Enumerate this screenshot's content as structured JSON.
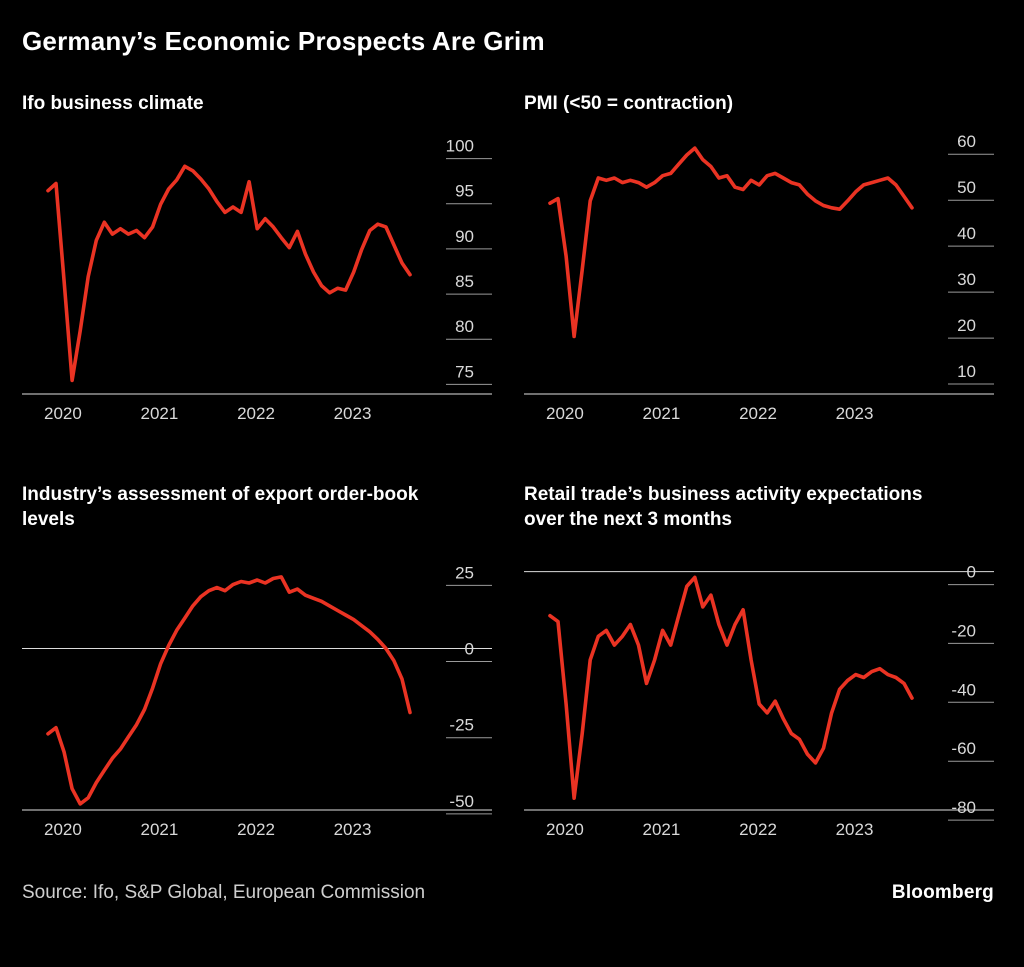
{
  "title": "Germany’s Economic Prospects Are Grim",
  "footer": {
    "source": "Source: Ifo, S&P Global, European Commission",
    "brand": "Bloomberg"
  },
  "colors": {
    "background": "#000000",
    "line": "#ea3323",
    "axis_text": "#d9d9d9",
    "axis_line": "#b3b3b3",
    "tick_line": "#9a9a9a",
    "zero_line": "#dcdcdc",
    "title_text": "#ffffff"
  },
  "chart_data": [
    {
      "type": "line",
      "title": "Ifo business climate",
      "x_tick_labels": [
        "2020",
        "2021",
        "2022",
        "2023"
      ],
      "x_tick_indices": [
        0,
        12,
        24,
        36
      ],
      "x_start": "Jan 2020 (monthly)",
      "ylim": [
        72.5,
        101.5
      ],
      "yticks": [
        75,
        80,
        85,
        90,
        95,
        100
      ],
      "zero_line": false,
      "values": [
        95.0,
        95.8,
        85.0,
        74.0,
        79.5,
        85.5,
        89.5,
        91.5,
        90.2,
        90.8,
        90.2,
        90.6,
        89.8,
        91.0,
        93.5,
        95.2,
        96.2,
        97.7,
        97.2,
        96.3,
        95.2,
        93.8,
        92.6,
        93.2,
        92.6,
        96.0,
        90.8,
        91.9,
        91.0,
        89.8,
        88.7,
        90.5,
        88.0,
        86.0,
        84.5,
        83.7,
        84.2,
        84.0,
        86.0,
        88.5,
        90.6,
        91.3,
        91.0,
        89.0,
        87.0,
        85.7
      ]
    },
    {
      "type": "line",
      "title": "PMI (<50 = contraction)",
      "x_tick_labels": [
        "2020",
        "2021",
        "2022",
        "2023"
      ],
      "x_tick_indices": [
        0,
        12,
        24,
        36
      ],
      "x_start": "Jan 2020 (monthly)",
      "ylim": [
        5,
        62
      ],
      "yticks": [
        10,
        20,
        30,
        40,
        50,
        60
      ],
      "zero_line": false,
      "values": [
        46.5,
        47.5,
        35.0,
        17.5,
        32.0,
        47.0,
        52.0,
        51.5,
        52.0,
        51.0,
        51.5,
        51.0,
        50.0,
        51.0,
        52.5,
        53.0,
        55.0,
        57.0,
        58.5,
        56.0,
        54.5,
        52.0,
        52.5,
        50.0,
        49.5,
        51.5,
        50.5,
        52.5,
        53.0,
        52.0,
        51.0,
        50.5,
        48.5,
        47.0,
        46.0,
        45.5,
        45.2,
        47.0,
        49.0,
        50.5,
        51.0,
        51.5,
        52.0,
        50.5,
        48.0,
        45.5
      ]
    },
    {
      "type": "line",
      "title": "Industry’s assessment of export order-book levels",
      "x_tick_labels": [
        "2020",
        "2021",
        "2022",
        "2023"
      ],
      "x_tick_indices": [
        0,
        12,
        24,
        36
      ],
      "x_start": "Jan 2020 (monthly)",
      "ylim": [
        -53,
        33
      ],
      "yticks": [
        -50,
        -25,
        0,
        25
      ],
      "zero_line": true,
      "values": [
        -28,
        -26,
        -34,
        -46,
        -51,
        -49,
        -44,
        -40,
        -36,
        -33,
        -29,
        -25,
        -20,
        -13,
        -5,
        1,
        6,
        10,
        14,
        17,
        19,
        20,
        19,
        21,
        22,
        21.5,
        22.5,
        21.5,
        23,
        23.5,
        18.5,
        19.5,
        17.5,
        16.5,
        15.5,
        14,
        12.5,
        11,
        9.5,
        7.5,
        5.5,
        3,
        0,
        -4,
        -10,
        -21
      ]
    },
    {
      "type": "line",
      "title": "Retail trade’s business activity expectations over the next 3 months",
      "x_tick_labels": [
        "2020",
        "2021",
        "2022",
        "2023"
      ],
      "x_tick_indices": [
        0,
        12,
        24,
        36
      ],
      "x_start": "Jan 2020 (monthly)",
      "ylim": [
        -81,
        8
      ],
      "yticks": [
        -80,
        -60,
        -40,
        -20,
        0
      ],
      "zero_line": true,
      "values": [
        -15,
        -17,
        -45,
        -77,
        -55,
        -30,
        -22,
        -20,
        -25,
        -22,
        -18,
        -25,
        -38,
        -30,
        -20,
        -25,
        -15,
        -5,
        -2,
        -12,
        -8,
        -18,
        -25,
        -18,
        -13,
        -30,
        -45,
        -48,
        -44,
        -50,
        -55,
        -57,
        -62,
        -65,
        -60,
        -48,
        -40,
        -37,
        -35,
        -36,
        -34,
        -33,
        -35,
        -36,
        -38,
        -43
      ]
    }
  ]
}
